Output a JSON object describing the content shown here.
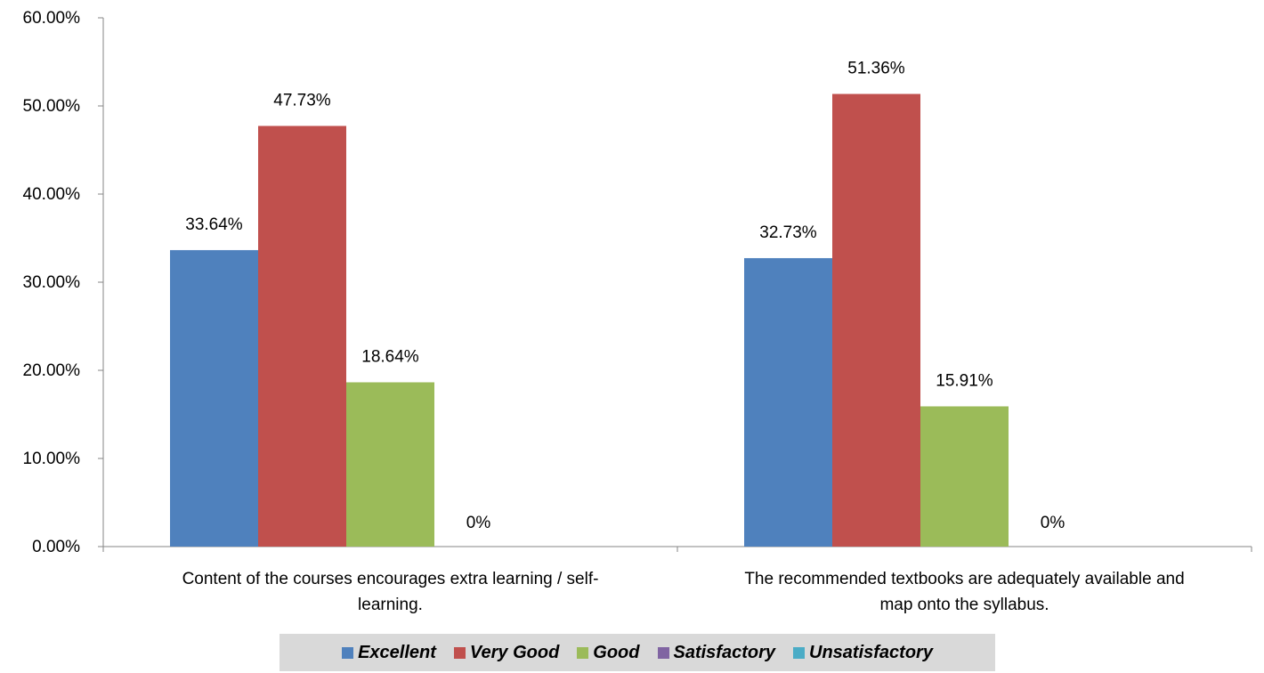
{
  "chart_data": {
    "type": "bar",
    "categories": [
      [
        "Content of the courses encourages extra learning / self-",
        "learning."
      ],
      [
        "The recommended textbooks are adequately available and",
        "map onto the syllabus."
      ]
    ],
    "series": [
      {
        "name": "Excellent",
        "color": "#4f81bd",
        "values": [
          33.64,
          32.73
        ],
        "labels": [
          "33.64%",
          "32.73%"
        ]
      },
      {
        "name": "Very Good",
        "color": "#c0504d",
        "values": [
          47.73,
          51.36
        ],
        "labels": [
          "47.73%",
          "51.36%"
        ]
      },
      {
        "name": "Good",
        "color": "#9bbb59",
        "values": [
          18.64,
          15.91
        ],
        "labels": [
          "18.64%",
          "15.91%"
        ]
      },
      {
        "name": "Satisfactory",
        "color": "#8064a2",
        "values": [
          0,
          0
        ],
        "labels": [
          "0%",
          "0%"
        ]
      },
      {
        "name": "Unsatisfactory",
        "color": "#4bacc6",
        "values": [
          0,
          0
        ],
        "labels": [
          null,
          null
        ]
      }
    ],
    "ylim": [
      0,
      60
    ],
    "yticks": [
      "0.00%",
      "10.00%",
      "20.00%",
      "30.00%",
      "40.00%",
      "50.00%",
      "60.00%"
    ],
    "grid": false,
    "legend_position": "bottom"
  }
}
